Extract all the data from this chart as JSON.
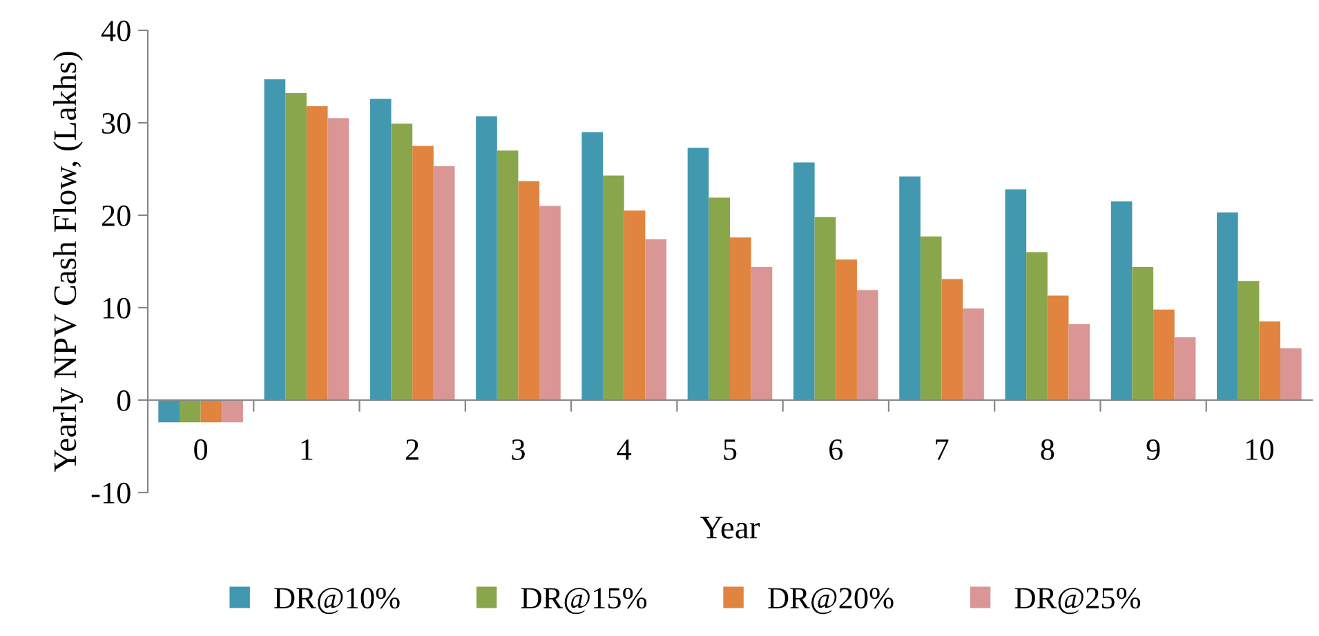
{
  "chart_data": {
    "type": "bar",
    "xlabel": "Year",
    "ylabel": "Yearly NPV Cash Flow, (Lakhs)",
    "categories": [
      "0",
      "1",
      "2",
      "3",
      "4",
      "5",
      "6",
      "7",
      "8",
      "9",
      "10"
    ],
    "series": [
      {
        "name": "DR@10%",
        "color": "#4198af",
        "values": [
          -2.4,
          34.7,
          32.6,
          30.7,
          29.0,
          27.3,
          25.7,
          24.2,
          22.8,
          21.5,
          20.3
        ]
      },
      {
        "name": "DR@15%",
        "color": "#8aa64b",
        "values": [
          -2.4,
          33.2,
          29.9,
          27.0,
          24.3,
          21.9,
          19.8,
          17.7,
          16.0,
          14.4,
          12.9
        ]
      },
      {
        "name": "DR@20%",
        "color": "#e0843f",
        "values": [
          -2.4,
          31.8,
          27.5,
          23.7,
          20.5,
          17.6,
          15.2,
          13.1,
          11.3,
          9.8,
          8.5
        ]
      },
      {
        "name": "DR@25%",
        "color": "#d99694",
        "values": [
          -2.4,
          30.5,
          25.3,
          21.0,
          17.4,
          14.4,
          11.9,
          9.9,
          8.2,
          6.8,
          5.6
        ]
      }
    ],
    "ylim": [
      -10,
      40
    ],
    "yticks": [
      -10,
      0,
      10,
      20,
      30,
      40
    ],
    "grid": false,
    "legend": "bottom"
  }
}
